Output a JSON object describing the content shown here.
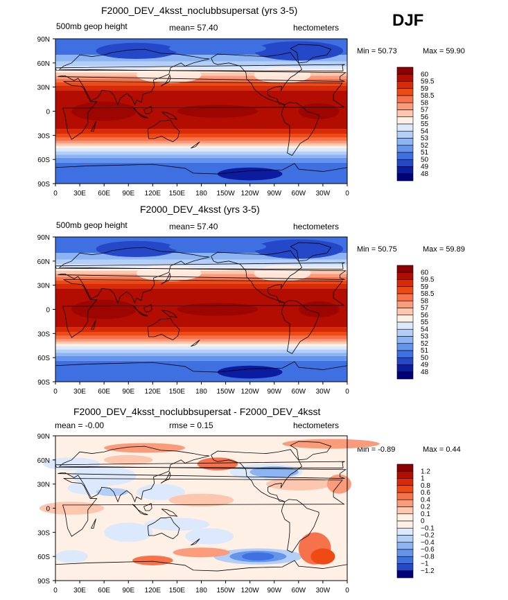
{
  "season": "DJF",
  "panels": [
    {
      "title": "F2000_DEV_4ksst_noclubbsupersat (yrs 3-5)",
      "left_label": "500mb geop height",
      "center_label": "mean=  57.40",
      "right_label": "hectometers",
      "min_text": "Min =  50.73",
      "max_text": "Max =  59.90",
      "levels": [
        "60",
        "59.5",
        "59",
        "58.5",
        "58",
        "57",
        "56",
        "55",
        "54",
        "53",
        "52",
        "51",
        "50",
        "49",
        "48"
      ],
      "colors": [
        "#8b0000",
        "#b30c00",
        "#d72a06",
        "#ee4a14",
        "#f5724a",
        "#fa9c7c",
        "#fdc6ae",
        "#fff0e6",
        "#dce8fb",
        "#b4cff7",
        "#8cb4f2",
        "#6494ec",
        "#3e70e2",
        "#2448c8",
        "#0c1ca0",
        "#000078"
      ],
      "map_type": "height"
    },
    {
      "title": "F2000_DEV_4ksst (yrs 3-5)",
      "left_label": "500mb geop height",
      "center_label": "mean=  57.40",
      "right_label": "hectometers",
      "min_text": "Min =  50.75",
      "max_text": "Max =  59.89",
      "levels": [
        "60",
        "59.5",
        "59",
        "58.5",
        "58",
        "57",
        "56",
        "55",
        "54",
        "53",
        "52",
        "51",
        "50",
        "49",
        "48"
      ],
      "colors": [
        "#8b0000",
        "#b30c00",
        "#d72a06",
        "#ee4a14",
        "#f5724a",
        "#fa9c7c",
        "#fdc6ae",
        "#fff0e6",
        "#dce8fb",
        "#b4cff7",
        "#8cb4f2",
        "#6494ec",
        "#3e70e2",
        "#2448c8",
        "#0c1ca0",
        "#000078"
      ],
      "map_type": "height"
    },
    {
      "title": "F2000_DEV_4ksst_noclubbsupersat - F2000_DEV_4ksst",
      "left_label": "mean =  -0.00",
      "center_label": "rmse =    0.15",
      "right_label": "hectometers",
      "min_text": "Min =  -0.89",
      "max_text": "Max =    0.44",
      "levels": [
        "1.2",
        "1",
        "0.8",
        "0.6",
        "0.4",
        "0.2",
        "0.1",
        "0",
        "−0.1",
        "−0.2",
        "−0.4",
        "−0.6",
        "−0.8",
        "−1",
        "−1.2"
      ],
      "colors": [
        "#8b0000",
        "#b30c00",
        "#d72a06",
        "#ee4a14",
        "#f5724a",
        "#fa9c7c",
        "#fdc6ae",
        "#fff0e6",
        "#fff0e6",
        "#dce8fb",
        "#b4cff7",
        "#8cb4f2",
        "#6494ec",
        "#3e70e2",
        "#2448c8",
        "#000078"
      ],
      "map_type": "diff"
    }
  ],
  "lat_ticks": [
    "90N",
    "60N",
    "30N",
    "0",
    "30S",
    "60S",
    "90S"
  ],
  "lon_ticks": [
    "0",
    "30E",
    "60E",
    "90E",
    "120E",
    "150E",
    "180",
    "150W",
    "120W",
    "90W",
    "60W",
    "30W",
    "0"
  ]
}
